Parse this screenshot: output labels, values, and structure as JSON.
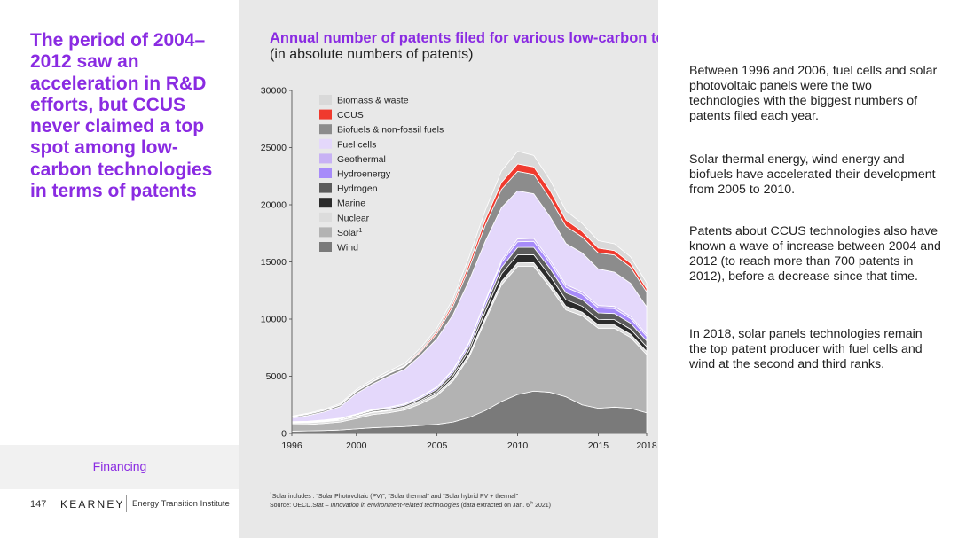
{
  "headline": "The period of 2004–2012 saw an acceleration in R&D efforts, but CCUS never claimed a top spot among low-carbon technologies in terms of patents",
  "section_label": "Financing",
  "footer": {
    "page_number": "147",
    "brand": "KEARNEY",
    "institute": "Energy Transition Institute"
  },
  "chart_title": "Annual number of patents filed for various low-carbon technologies",
  "chart_subtitle": "(in absolute numbers of patents)",
  "paragraphs": [
    "Between 1996 and 2006, fuel cells and solar photovoltaic panels were the two technologies with the biggest numbers of patents filed each year.",
    "Solar thermal energy, wind energy and biofuels have accelerated their development from 2005 to 2010.",
    "Patents about CCUS technologies also have known a wave of increase between 2004 and 2012 (to reach more than 700 patents in 2012), before a decrease since that time.",
    "In 2018, solar panels technologies remain the top patent producer with fuel cells and wind at the second and third ranks."
  ],
  "footnote": {
    "line1": "Solar includes : “Solar Photovoltaic (PV)”, “Solar thermal” and “Solar hybrid PV + thermal”",
    "source_prefix": "Source: OECD.Stat – ",
    "source_title": "Innovation in environment-related technologies",
    "source_suffix_a": " (data extracted on Jan. 6",
    "source_suffix_sup": "th",
    "source_suffix_b": " 2021)"
  },
  "chart_data": {
    "type": "area",
    "stacked": true,
    "title": "Annual number of patents filed for various low-carbon technologies",
    "subtitle": "(in absolute numbers of patents)",
    "x": [
      1996,
      1997,
      1998,
      1999,
      2000,
      2001,
      2002,
      2003,
      2004,
      2005,
      2006,
      2007,
      2008,
      2009,
      2010,
      2011,
      2012,
      2013,
      2014,
      2015,
      2016,
      2017,
      2018
    ],
    "x_ticks": [
      1996,
      2000,
      2005,
      2010,
      2015,
      2018
    ],
    "y_ticks": [
      0,
      5000,
      10000,
      15000,
      20000,
      25000,
      30000
    ],
    "ylim": [
      0,
      30000
    ],
    "xlim": [
      1996,
      2018
    ],
    "grid": false,
    "legend_position": "top-left",
    "series": [
      {
        "name": "Wind",
        "color": "#7a7a7a",
        "values": [
          200,
          220,
          250,
          300,
          400,
          500,
          550,
          600,
          700,
          800,
          1000,
          1400,
          2000,
          2800,
          3400,
          3700,
          3600,
          3200,
          2500,
          2200,
          2300,
          2200,
          1800
        ]
      },
      {
        "name": "Solar",
        "superscript": "1",
        "color": "#b3b3b3",
        "values": [
          550,
          560,
          620,
          700,
          900,
          1150,
          1250,
          1450,
          1900,
          2500,
          3600,
          5300,
          7900,
          10200,
          11200,
          10900,
          9200,
          7600,
          7800,
          7000,
          6900,
          6200,
          5100
        ]
      },
      {
        "name": "Nuclear",
        "color": "#dcdcdc",
        "values": [
          150,
          150,
          150,
          160,
          170,
          180,
          180,
          190,
          200,
          200,
          220,
          230,
          260,
          300,
          320,
          330,
          330,
          320,
          310,
          300,
          290,
          280,
          270
        ]
      },
      {
        "name": "Marine",
        "color": "#2b2b2b",
        "values": [
          30,
          30,
          35,
          40,
          50,
          60,
          70,
          80,
          100,
          150,
          230,
          350,
          520,
          650,
          700,
          700,
          650,
          580,
          520,
          480,
          460,
          440,
          420
        ]
      },
      {
        "name": "Hydrogen",
        "color": "#5c5c5c",
        "values": [
          50,
          50,
          60,
          70,
          90,
          110,
          130,
          150,
          180,
          220,
          280,
          350,
          450,
          550,
          650,
          650,
          650,
          600,
          580,
          560,
          540,
          520,
          500
        ]
      },
      {
        "name": "Hydroenergy",
        "color": "#a78bfa",
        "values": [
          40,
          40,
          45,
          50,
          60,
          70,
          80,
          90,
          110,
          140,
          180,
          250,
          350,
          450,
          500,
          520,
          500,
          480,
          460,
          440,
          420,
          410,
          400
        ]
      },
      {
        "name": "Geothermal",
        "color": "#c8b2f4",
        "values": [
          15,
          15,
          18,
          20,
          25,
          30,
          35,
          40,
          50,
          70,
          90,
          110,
          150,
          200,
          250,
          260,
          250,
          230,
          220,
          210,
          200,
          190,
          180
        ]
      },
      {
        "name": "Fuel cells",
        "color": "#e4d8fb",
        "values": [
          300,
          500,
          700,
          1000,
          1800,
          2200,
          2700,
          3000,
          3600,
          4200,
          4800,
          5400,
          5200,
          4600,
          4200,
          3900,
          3800,
          3600,
          3400,
          3200,
          3000,
          2900,
          2400
        ]
      },
      {
        "name": "Biofuels & non-fossil fuels",
        "color": "#8c8c8c",
        "values": [
          100,
          110,
          130,
          150,
          180,
          200,
          220,
          250,
          300,
          450,
          750,
          1100,
          1400,
          1600,
          1700,
          1700,
          1600,
          1500,
          1400,
          1400,
          1500,
          1400,
          1300
        ]
      },
      {
        "name": "CCUS",
        "color": "#f03a2e",
        "values": [
          20,
          22,
          25,
          30,
          40,
          50,
          60,
          80,
          120,
          180,
          260,
          380,
          500,
          600,
          650,
          650,
          700,
          550,
          480,
          420,
          380,
          350,
          300
        ]
      },
      {
        "name": "Biomass & waste",
        "color": "#d9d9d9",
        "values": [
          60,
          70,
          80,
          100,
          130,
          150,
          180,
          200,
          250,
          300,
          400,
          600,
          800,
          1000,
          1100,
          1000,
          900,
          800,
          700,
          650,
          600,
          550,
          500
        ]
      }
    ]
  }
}
